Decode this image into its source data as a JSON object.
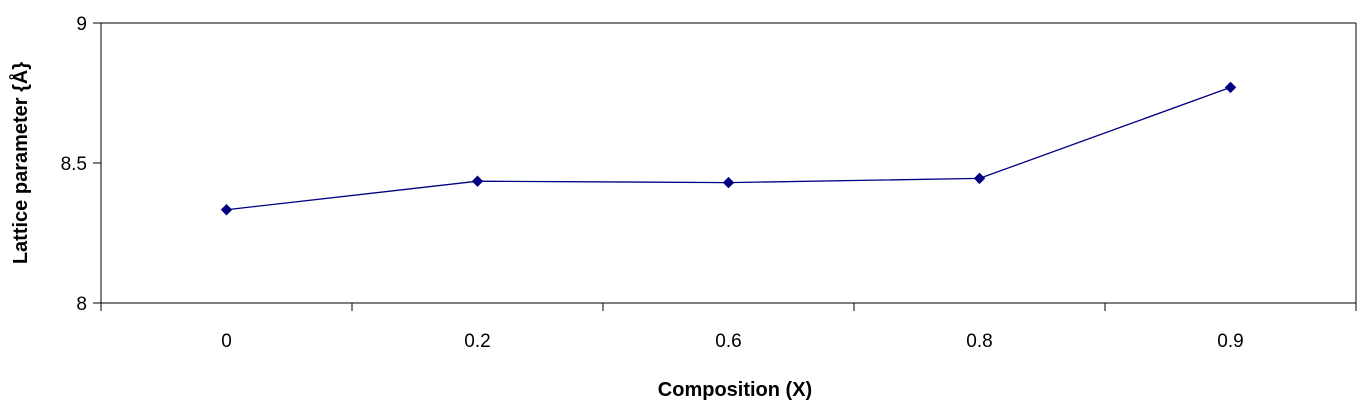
{
  "chart_data": {
    "type": "line",
    "title": "",
    "xlabel": "Composition (X)",
    "ylabel": "Lattice parameter {Å}",
    "categories": [
      "0",
      "0.2",
      "0.6",
      "0.8",
      "0.9"
    ],
    "series": [
      {
        "values": [
          8.333,
          8.435,
          8.43,
          8.445,
          8.77
        ],
        "color": "#000080",
        "marker": "diamond"
      }
    ],
    "ylim": [
      8,
      9
    ],
    "y_ticks": [
      "8",
      "8.5",
      "9"
    ],
    "grid": false,
    "legend": "none"
  }
}
